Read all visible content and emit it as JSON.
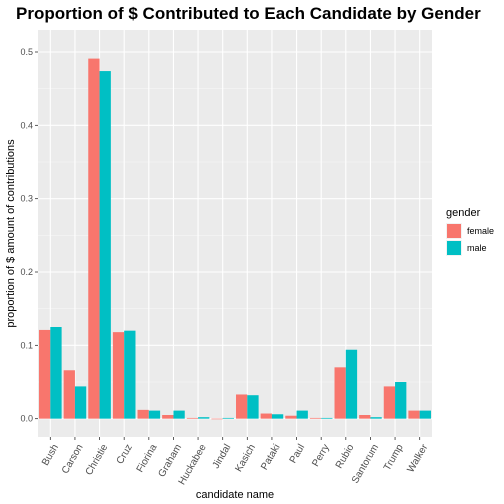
{
  "chart_data": {
    "type": "bar",
    "title": "Proportion of $ Contributed to Each Candidate by Gender",
    "xlabel": "candidate name",
    "ylabel": "proportion of $ amount of contributions",
    "ylim": [
      -0.025,
      0.53
    ],
    "yticks": [
      "0.0",
      "0.1",
      "0.2",
      "0.3",
      "0.4",
      "0.5"
    ],
    "ytick_values": [
      0.0,
      0.1,
      0.2,
      0.3,
      0.4,
      0.5
    ],
    "grid": true,
    "legend": {
      "title": "gender",
      "placement": "right"
    },
    "categories": [
      "Bush",
      "Carson",
      "Christie",
      "Cruz",
      "Fiorina",
      "Graham",
      "Huckabee",
      "Jindal",
      "Kasich",
      "Pataki",
      "Paul",
      "Perry",
      "Rubio",
      "Santorum",
      "Trump",
      "Walker"
    ],
    "series": [
      {
        "name": "female",
        "color": "#F8766D",
        "values": [
          0.121,
          0.066,
          0.491,
          0.118,
          0.012,
          0.005,
          0.001,
          0.0,
          0.033,
          0.007,
          0.004,
          0.001,
          0.07,
          0.005,
          0.044,
          0.011
        ]
      },
      {
        "name": "male",
        "color": "#00BFC4",
        "values": [
          0.125,
          0.044,
          0.474,
          0.12,
          0.011,
          0.011,
          0.002,
          0.001,
          0.032,
          0.006,
          0.011,
          0.001,
          0.094,
          0.002,
          0.05,
          0.011
        ]
      }
    ]
  }
}
